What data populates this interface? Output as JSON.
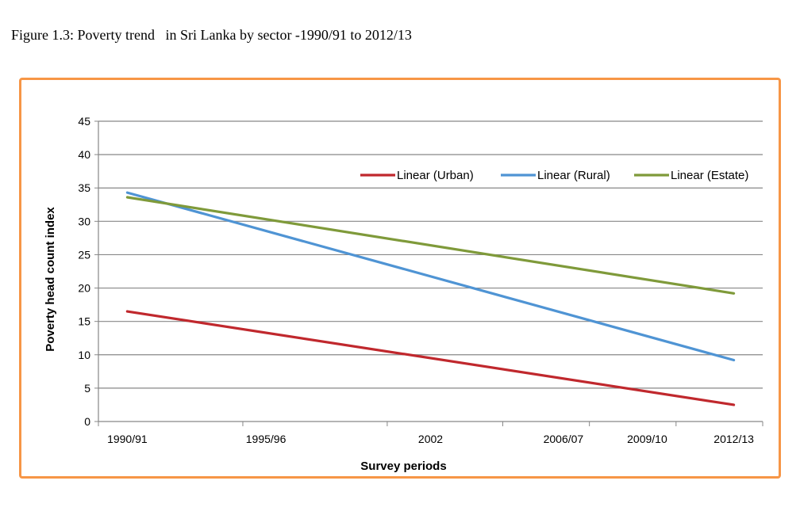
{
  "figure": {
    "caption": "Figure 1.3: Poverty trend   in Sri Lanka by sector -1990/91 to 2012/13"
  },
  "chart_data": {
    "type": "line",
    "title": "",
    "xlabel": "Survey periods",
    "ylabel": "Poverty head count index",
    "ylim": [
      0,
      45
    ],
    "y_ticks": [
      0,
      5,
      10,
      15,
      20,
      25,
      30,
      35,
      40,
      45
    ],
    "x_axis": {
      "ticks": [
        1990.5,
        1995.5,
        2000.5,
        2004.5,
        2007.5,
        2010.5,
        2013.5
      ],
      "labels": [
        {
          "text": "1990/91",
          "x": 1991.5
        },
        {
          "text": "1995/96",
          "x": 1996.3
        },
        {
          "text": "2002",
          "x": 2002
        },
        {
          "text": "2006/07",
          "x": 2006.6
        },
        {
          "text": "2009/10",
          "x": 2009.5
        },
        {
          "text": "2012/13",
          "x": 2012.5
        }
      ],
      "xlim": [
        1990.5,
        2013.5
      ]
    },
    "grid": true,
    "legend_position": "top-right",
    "series": [
      {
        "name": "Linear (Urban)",
        "color": "#c0282d",
        "x": [
          1991.5,
          2012.5
        ],
        "y": [
          16.5,
          2.5
        ]
      },
      {
        "name": "Linear (Rural)",
        "color": "#4f94d4",
        "x": [
          1991.5,
          2012.5
        ],
        "y": [
          34.3,
          9.2
        ]
      },
      {
        "name": "Linear (Estate)",
        "color": "#7f9a3a",
        "x": [
          1991.5,
          2012.5
        ],
        "y": [
          33.6,
          19.2
        ]
      }
    ]
  }
}
